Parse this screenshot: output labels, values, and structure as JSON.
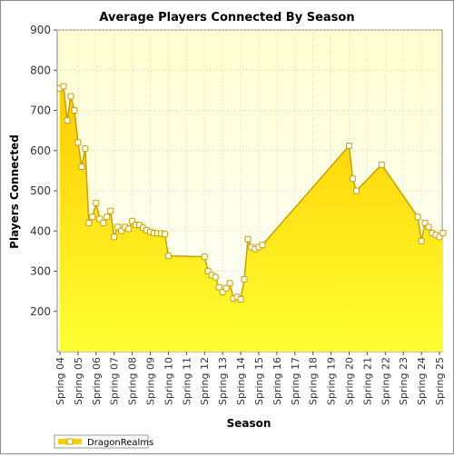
{
  "chart_data": {
    "type": "area",
    "title": "Average Players Connected By Season",
    "xlabel": "Season",
    "ylabel": "Players Connected",
    "ylim": [
      100,
      900
    ],
    "yticks": [
      200,
      300,
      400,
      500,
      600,
      700,
      800,
      900
    ],
    "grid": true,
    "legend_position": "bottom-left",
    "categories": [
      "Spring 04",
      "Spring 05",
      "Spring 06",
      "Spring 07",
      "Spring 08",
      "Spring 09",
      "Spring 10",
      "Spring 11",
      "Spring 12",
      "Spring 13",
      "Spring 14",
      "Spring 15",
      "Spring 16",
      "Spring 17",
      "Spring 18",
      "Spring 19",
      "Spring 20",
      "Spring 21",
      "Spring 22",
      "Spring 23",
      "Spring 24",
      "Spring 25"
    ],
    "series": [
      {
        "name": "DragonRealms",
        "x": [
          0.0,
          0.2,
          0.4,
          0.6,
          0.8,
          1.0,
          1.2,
          1.4,
          1.6,
          1.8,
          2.0,
          2.2,
          2.4,
          2.6,
          2.8,
          3.0,
          3.2,
          3.4,
          3.6,
          3.8,
          4.0,
          4.2,
          4.4,
          4.6,
          4.8,
          5.0,
          5.2,
          5.4,
          5.6,
          5.8,
          6.0,
          8.0,
          8.2,
          8.4,
          8.6,
          8.8,
          9.0,
          9.2,
          9.4,
          9.6,
          9.8,
          10.0,
          10.2,
          10.4,
          10.6,
          10.8,
          11.0,
          11.2,
          16.0,
          16.2,
          16.4,
          17.8,
          19.8,
          20.0,
          20.2,
          20.4,
          20.6,
          20.8,
          21.0,
          21.2
        ],
        "values": [
          755,
          760,
          675,
          735,
          700,
          620,
          560,
          605,
          420,
          435,
          470,
          430,
          420,
          435,
          450,
          385,
          410,
          400,
          410,
          405,
          425,
          415,
          415,
          408,
          402,
          398,
          395,
          394,
          394,
          392,
          338,
          336,
          300,
          290,
          285,
          260,
          248,
          258,
          270,
          232,
          236,
          230,
          280,
          380,
          360,
          355,
          360,
          365,
          612,
          530,
          500,
          565,
          435,
          375,
          420,
          410,
          395,
          390,
          385,
          395
        ],
        "color": "#ffe600",
        "line_color": "#c8a000"
      }
    ],
    "colors": {
      "plot_background_top": "#ffffd0",
      "area_top": "#ffcc00",
      "area_bottom": "#ffff33",
      "marker_fill": "#ffffff",
      "marker_stroke": "#c8a000"
    }
  }
}
